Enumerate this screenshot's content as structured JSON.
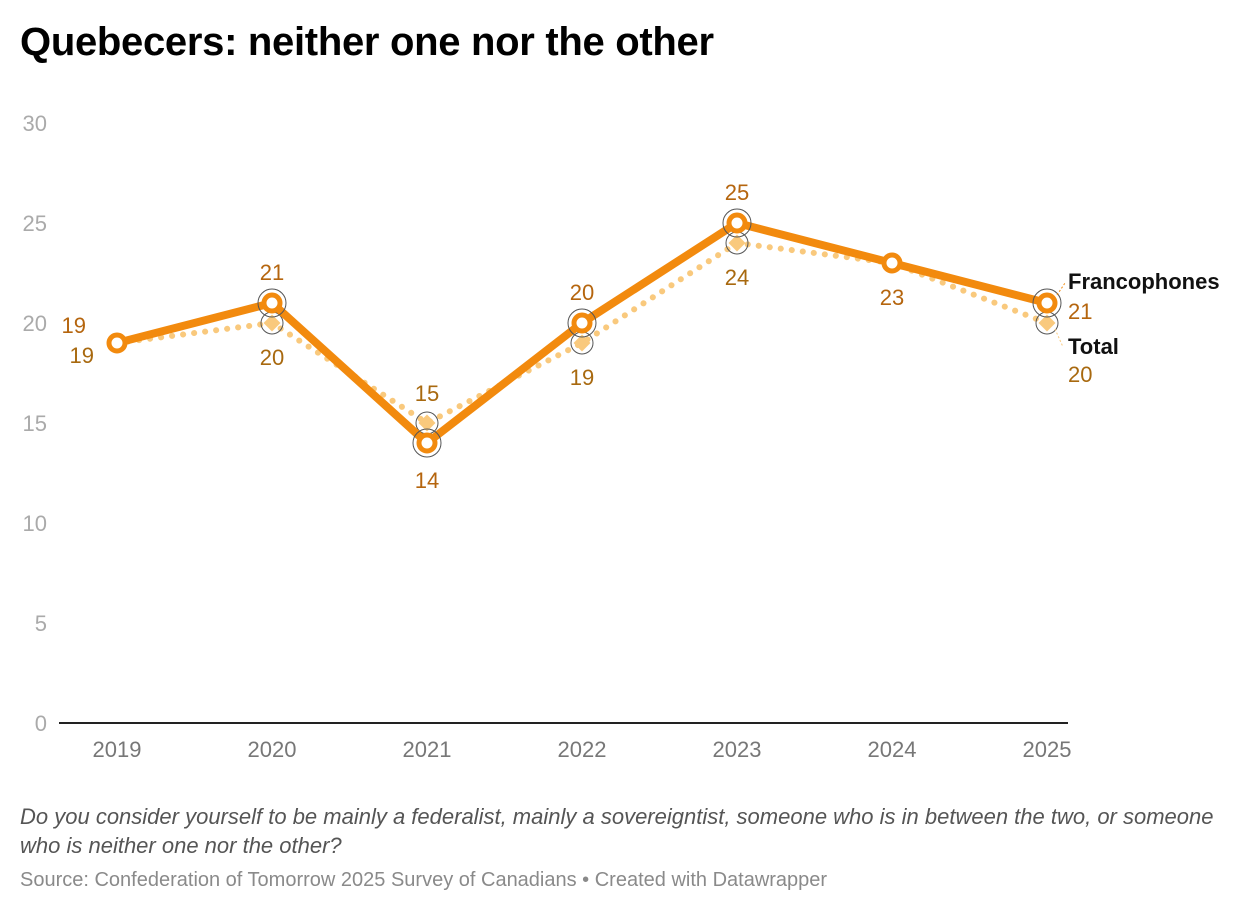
{
  "title": "Quebecers: neither one nor the other",
  "note": "Do you consider yourself to be mainly a federalist, mainly a sovereigntist, someone who is in between the two, or someone who is neither one nor the other?",
  "source": "Source: Confederation of Tomorrow 2025 Survey of Canadians • Created with Datawrapper",
  "colors": {
    "francophones": "#f28a0e",
    "total": "#f9c97d",
    "francophones_label": "#b5650e",
    "total_label": "#a8690f"
  },
  "chart_data": {
    "type": "line",
    "title": "Quebecers: neither one nor the other",
    "xlabel": "",
    "ylabel": "",
    "x": [
      "2019",
      "2020",
      "2021",
      "2022",
      "2023",
      "2024",
      "2025"
    ],
    "ylim": [
      0,
      30
    ],
    "yticks": [
      "0",
      "5",
      "10",
      "15",
      "20",
      "25",
      "30"
    ],
    "grid": false,
    "series": [
      {
        "name": "Francophones",
        "values": [
          19,
          21,
          14,
          20,
          25,
          23,
          21
        ],
        "style": "solid"
      },
      {
        "name": "Total",
        "values": [
          19,
          20,
          15,
          19,
          24,
          23,
          20
        ],
        "style": "dotted"
      }
    ]
  }
}
